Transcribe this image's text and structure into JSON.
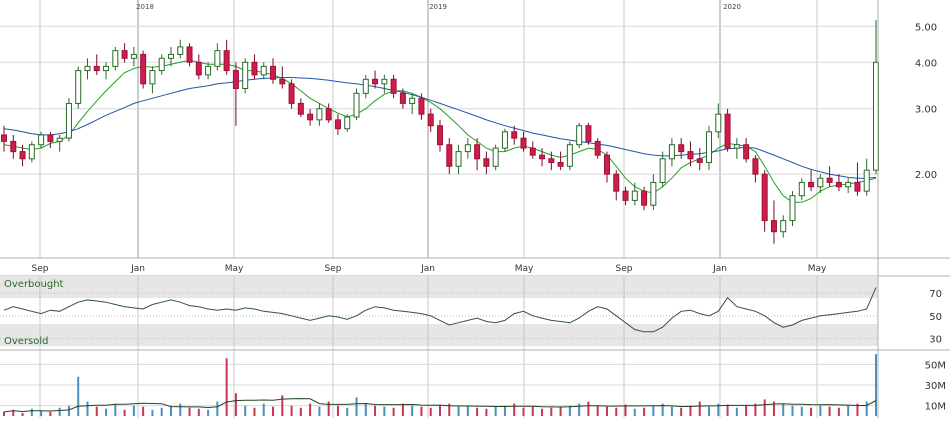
{
  "chart_data": [
    {
      "type": "candlestick",
      "panel": "price",
      "scale": "log",
      "ylim": [
        1.25,
        5.6
      ],
      "y_ticks": [
        "5.00",
        "4.00",
        "3.00",
        "2.00"
      ],
      "y_tick_values": [
        5.0,
        4.0,
        3.0,
        2.0
      ],
      "x_month_ticks": [
        "Sep",
        "Jan",
        "May",
        "Sep",
        "Jan",
        "May",
        "Sep",
        "Jan",
        "May"
      ],
      "x_year_ticks": [
        "2018",
        "2019",
        "2020"
      ],
      "candles": [
        [
          2.55,
          2.7,
          2.3,
          2.45
        ],
        [
          2.45,
          2.55,
          2.2,
          2.3
        ],
        [
          2.3,
          2.4,
          2.1,
          2.2
        ],
        [
          2.2,
          2.45,
          2.15,
          2.4
        ],
        [
          2.4,
          2.6,
          2.35,
          2.55
        ],
        [
          2.55,
          2.6,
          2.35,
          2.45
        ],
        [
          2.45,
          2.55,
          2.3,
          2.5
        ],
        [
          2.5,
          3.2,
          2.45,
          3.1
        ],
        [
          3.1,
          3.9,
          3.0,
          3.8
        ],
        [
          3.8,
          4.1,
          3.6,
          3.9
        ],
        [
          3.9,
          4.2,
          3.7,
          3.8
        ],
        [
          3.8,
          4.0,
          3.6,
          3.9
        ],
        [
          3.9,
          4.4,
          3.8,
          4.3
        ],
        [
          4.3,
          4.5,
          4.0,
          4.1
        ],
        [
          4.1,
          4.4,
          3.9,
          4.2
        ],
        [
          4.2,
          4.3,
          3.4,
          3.5
        ],
        [
          3.5,
          3.9,
          3.3,
          3.8
        ],
        [
          3.8,
          4.2,
          3.7,
          4.1
        ],
        [
          4.1,
          4.4,
          3.9,
          4.2
        ],
        [
          4.2,
          4.6,
          4.1,
          4.4
        ],
        [
          4.4,
          4.5,
          3.9,
          4.0
        ],
        [
          4.0,
          4.2,
          3.6,
          3.7
        ],
        [
          3.7,
          4.0,
          3.6,
          3.9
        ],
        [
          3.9,
          4.5,
          3.8,
          4.3
        ],
        [
          4.3,
          4.6,
          3.7,
          3.8
        ],
        [
          3.8,
          4.0,
          2.7,
          3.4
        ],
        [
          3.4,
          4.1,
          3.3,
          4.0
        ],
        [
          4.0,
          4.2,
          3.6,
          3.7
        ],
        [
          3.7,
          4.0,
          3.6,
          3.9
        ],
        [
          3.9,
          4.1,
          3.5,
          3.6
        ],
        [
          3.6,
          3.9,
          3.4,
          3.5
        ],
        [
          3.5,
          3.6,
          3.0,
          3.1
        ],
        [
          3.1,
          3.2,
          2.85,
          2.9
        ],
        [
          2.9,
          3.0,
          2.7,
          2.8
        ],
        [
          2.8,
          3.1,
          2.7,
          3.0
        ],
        [
          3.0,
          3.1,
          2.75,
          2.8
        ],
        [
          2.8,
          2.9,
          2.55,
          2.65
        ],
        [
          2.65,
          2.9,
          2.6,
          2.85
        ],
        [
          2.85,
          3.4,
          2.8,
          3.3
        ],
        [
          3.3,
          3.7,
          3.2,
          3.6
        ],
        [
          3.6,
          3.8,
          3.4,
          3.5
        ],
        [
          3.5,
          3.7,
          3.3,
          3.6
        ],
        [
          3.6,
          3.7,
          3.2,
          3.3
        ],
        [
          3.3,
          3.4,
          3.0,
          3.1
        ],
        [
          3.1,
          3.3,
          2.9,
          3.2
        ],
        [
          3.2,
          3.3,
          2.8,
          2.9
        ],
        [
          2.9,
          3.0,
          2.6,
          2.7
        ],
        [
          2.7,
          2.8,
          2.3,
          2.4
        ],
        [
          2.4,
          2.5,
          2.0,
          2.1
        ],
        [
          2.1,
          2.4,
          2.0,
          2.3
        ],
        [
          2.3,
          2.5,
          2.2,
          2.4
        ],
        [
          2.4,
          2.5,
          2.05,
          2.2
        ],
        [
          2.2,
          2.3,
          2.0,
          2.1
        ],
        [
          2.1,
          2.4,
          2.05,
          2.35
        ],
        [
          2.35,
          2.65,
          2.3,
          2.6
        ],
        [
          2.6,
          2.7,
          2.4,
          2.5
        ],
        [
          2.5,
          2.6,
          2.3,
          2.35
        ],
        [
          2.35,
          2.45,
          2.2,
          2.25
        ],
        [
          2.25,
          2.35,
          2.1,
          2.2
        ],
        [
          2.2,
          2.3,
          2.05,
          2.15
        ],
        [
          2.15,
          2.3,
          2.05,
          2.1
        ],
        [
          2.1,
          2.45,
          2.05,
          2.4
        ],
        [
          2.4,
          2.75,
          2.35,
          2.7
        ],
        [
          2.7,
          2.75,
          2.4,
          2.45
        ],
        [
          2.45,
          2.5,
          2.2,
          2.25
        ],
        [
          2.25,
          2.3,
          1.9,
          2.0
        ],
        [
          2.0,
          2.05,
          1.7,
          1.8
        ],
        [
          1.8,
          1.85,
          1.65,
          1.7
        ],
        [
          1.7,
          1.9,
          1.65,
          1.8
        ],
        [
          1.8,
          1.85,
          1.6,
          1.65
        ],
        [
          1.65,
          2.0,
          1.6,
          1.9
        ],
        [
          1.9,
          2.3,
          1.85,
          2.2
        ],
        [
          2.2,
          2.5,
          2.1,
          2.4
        ],
        [
          2.4,
          2.5,
          2.2,
          2.3
        ],
        [
          2.3,
          2.45,
          2.1,
          2.2
        ],
        [
          2.2,
          2.35,
          2.05,
          2.15
        ],
        [
          2.15,
          2.7,
          2.05,
          2.6
        ],
        [
          2.6,
          3.1,
          2.5,
          2.9
        ],
        [
          2.9,
          3.0,
          2.3,
          2.35
        ],
        [
          2.35,
          2.5,
          2.2,
          2.4
        ],
        [
          2.4,
          2.5,
          2.15,
          2.2
        ],
        [
          2.2,
          2.25,
          1.9,
          2.0
        ],
        [
          2.0,
          2.05,
          1.4,
          1.5
        ],
        [
          1.5,
          1.7,
          1.3,
          1.4
        ],
        [
          1.4,
          1.55,
          1.35,
          1.5
        ],
        [
          1.5,
          1.8,
          1.45,
          1.75
        ],
        [
          1.75,
          1.95,
          1.7,
          1.9
        ],
        [
          1.9,
          2.05,
          1.8,
          1.85
        ],
        [
          1.85,
          2.0,
          1.78,
          1.95
        ],
        [
          1.95,
          2.1,
          1.85,
          1.9
        ],
        [
          1.9,
          2.0,
          1.8,
          1.85
        ],
        [
          1.85,
          1.95,
          1.78,
          1.9
        ],
        [
          1.9,
          2.15,
          1.75,
          1.8
        ],
        [
          1.8,
          2.2,
          1.75,
          2.05
        ],
        [
          2.05,
          5.2,
          2.0,
          4.0
        ]
      ],
      "moving_averages": [
        {
          "color": "#22a022",
          "values": [
            2.4,
            2.38,
            2.35,
            2.33,
            2.35,
            2.42,
            2.45,
            2.55,
            2.75,
            2.95,
            3.15,
            3.35,
            3.55,
            3.75,
            3.85,
            3.9,
            3.88,
            3.9,
            3.95,
            4.0,
            4.05,
            4.0,
            3.95,
            3.95,
            3.95,
            3.9,
            3.8,
            3.8,
            3.75,
            3.7,
            3.62,
            3.5,
            3.35,
            3.2,
            3.1,
            3.0,
            2.92,
            2.85,
            2.9,
            3.0,
            3.15,
            3.28,
            3.35,
            3.35,
            3.3,
            3.22,
            3.12,
            3.0,
            2.85,
            2.7,
            2.55,
            2.45,
            2.35,
            2.3,
            2.3,
            2.35,
            2.38,
            2.35,
            2.3,
            2.25,
            2.22,
            2.25,
            2.3,
            2.35,
            2.33,
            2.25,
            2.1,
            1.95,
            1.85,
            1.8,
            1.78,
            1.85,
            1.95,
            2.08,
            2.15,
            2.2,
            2.25,
            2.35,
            2.42,
            2.4,
            2.38,
            2.3,
            2.1,
            1.9,
            1.75,
            1.68,
            1.68,
            1.72,
            1.8,
            1.85,
            1.87,
            1.88,
            1.9,
            1.92,
            1.95
          ]
        },
        {
          "color": "#2255aa",
          "values": [
            2.65,
            2.63,
            2.6,
            2.57,
            2.55,
            2.55,
            2.57,
            2.6,
            2.65,
            2.72,
            2.8,
            2.88,
            2.95,
            3.02,
            3.1,
            3.15,
            3.2,
            3.25,
            3.3,
            3.35,
            3.4,
            3.43,
            3.46,
            3.5,
            3.52,
            3.55,
            3.58,
            3.6,
            3.62,
            3.63,
            3.64,
            3.64,
            3.63,
            3.62,
            3.6,
            3.58,
            3.55,
            3.52,
            3.5,
            3.47,
            3.44,
            3.4,
            3.36,
            3.32,
            3.27,
            3.22,
            3.16,
            3.1,
            3.04,
            2.98,
            2.92,
            2.86,
            2.8,
            2.75,
            2.7,
            2.66,
            2.62,
            2.58,
            2.55,
            2.52,
            2.49,
            2.47,
            2.45,
            2.43,
            2.41,
            2.39,
            2.36,
            2.33,
            2.3,
            2.27,
            2.25,
            2.24,
            2.24,
            2.25,
            2.26,
            2.27,
            2.29,
            2.31,
            2.34,
            2.35,
            2.36,
            2.35,
            2.3,
            2.25,
            2.2,
            2.15,
            2.1,
            2.06,
            2.03,
            2.0,
            1.98,
            1.96,
            1.95,
            1.95,
            1.96
          ]
        }
      ]
    },
    {
      "type": "line",
      "panel": "oscillator",
      "series_color": "#335533",
      "ylim": [
        20,
        85
      ],
      "y_ticks": [
        "70",
        "50",
        "30"
      ],
      "y_tick_values": [
        70,
        50,
        30
      ],
      "bands": [
        70,
        30
      ],
      "labels": {
        "upper": "Overbought",
        "lower": "Oversold"
      },
      "values": [
        55,
        58,
        56,
        54,
        52,
        55,
        54,
        58,
        62,
        64,
        63,
        62,
        60,
        58,
        57,
        56,
        60,
        62,
        64,
        62,
        59,
        58,
        56,
        55,
        56,
        55,
        57,
        56,
        54,
        53,
        52,
        50,
        48,
        46,
        48,
        50,
        49,
        47,
        50,
        55,
        58,
        57,
        55,
        54,
        53,
        52,
        50,
        46,
        42,
        44,
        46,
        48,
        45,
        44,
        46,
        52,
        54,
        50,
        48,
        46,
        45,
        44,
        48,
        54,
        58,
        56,
        50,
        44,
        38,
        36,
        36,
        40,
        48,
        54,
        55,
        52,
        50,
        54,
        66,
        58,
        56,
        54,
        50,
        44,
        40,
        42,
        46,
        48,
        50,
        51,
        52,
        53,
        54,
        56,
        75
      ]
    },
    {
      "type": "bar",
      "panel": "volume",
      "ylim": [
        0,
        62
      ],
      "y_ticks": [
        "50M",
        "30M",
        "10M"
      ],
      "y_tick_values": [
        50,
        30,
        10
      ],
      "values": [
        4,
        6,
        3,
        7,
        5,
        4,
        8,
        10,
        38,
        14,
        9,
        7,
        12,
        6,
        10,
        9,
        6,
        8,
        10,
        12,
        8,
        7,
        6,
        14,
        56,
        22,
        10,
        8,
        12,
        9,
        20,
        10,
        8,
        12,
        9,
        14,
        10,
        8,
        18,
        12,
        10,
        9,
        8,
        12,
        10,
        9,
        8,
        10,
        12,
        9,
        10,
        8,
        7,
        9,
        10,
        12,
        8,
        9,
        7,
        8,
        9,
        10,
        12,
        14,
        10,
        9,
        8,
        11,
        7,
        8,
        10,
        12,
        9,
        8,
        10,
        14,
        9,
        12,
        11,
        8,
        10,
        12,
        16,
        14,
        12,
        10,
        9,
        8,
        10,
        9,
        8,
        10,
        12,
        14,
        60
      ],
      "up_color": "#4a8fc0",
      "down_color": "#cc3355",
      "avg_line_color": "#224422"
    }
  ]
}
